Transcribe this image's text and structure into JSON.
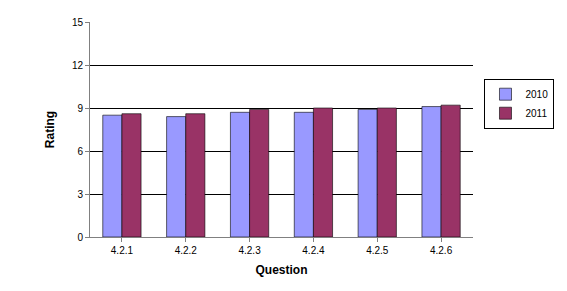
{
  "chart_data": {
    "type": "bar",
    "x_label": "Question",
    "y_label": "Rating",
    "categories": [
      "4.2.1",
      "4.2.2",
      "4.2.3",
      "4.2.4",
      "4.2.5",
      "4.2.6"
    ],
    "series": [
      {
        "name": "2010",
        "color": "#9999ff",
        "values": [
          8.5,
          8.4,
          8.7,
          8.7,
          8.9,
          9.1
        ]
      },
      {
        "name": "2011",
        "color": "#993366",
        "values": [
          8.6,
          8.6,
          8.9,
          9.0,
          9.0,
          9.2
        ]
      }
    ],
    "ylim": [
      0,
      15
    ],
    "yticks": [
      0,
      3,
      6,
      9,
      12,
      15
    ],
    "grid": true,
    "legend": "right"
  }
}
